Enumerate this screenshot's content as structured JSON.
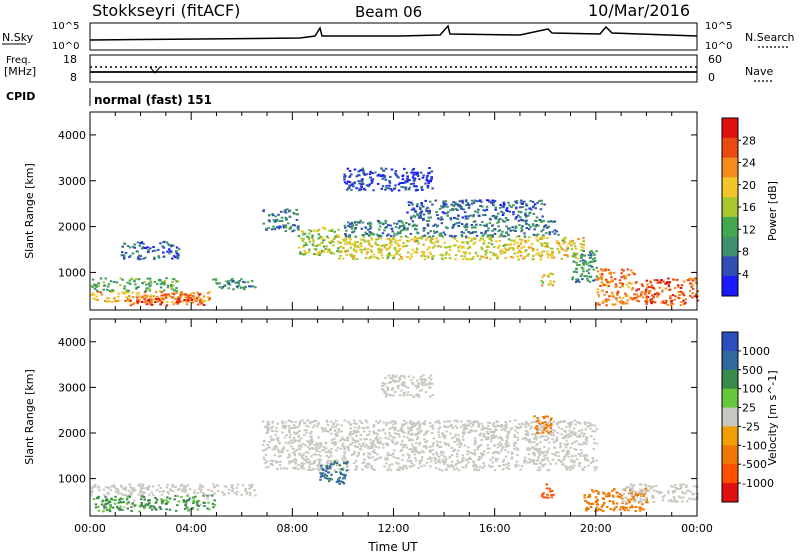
{
  "header": {
    "station": "Stokkseyri (fitACF)",
    "beam": "Beam 06",
    "date": "10/Mar/2016"
  },
  "strips": {
    "nsky_label": "N.Sky",
    "nsky_ticks": [
      "10^5",
      "10^0"
    ],
    "nsearch_label": "N.Search",
    "nsearch_ticks": [
      "10^5",
      "10^0"
    ],
    "freq_label": "Freq.",
    "freq_unit": "[MHz]",
    "freq_ticks": [
      "18",
      "8"
    ],
    "nave_label": "Nave",
    "nave_ticks": [
      "60",
      "0"
    ],
    "cpid_label": "CPID",
    "cpid_value": "normal (fast) 151"
  },
  "colors": {
    "power": [
      "#1a1aff",
      "#2f4fb4",
      "#3f8f6e",
      "#44a850",
      "#a8c830",
      "#f2c628",
      "#f58c1e",
      "#ea4a12",
      "#e01010"
    ],
    "velocity": [
      "#2a4ec0",
      "#2e6a9a",
      "#3a8a4c",
      "#64c83a",
      "#c8c8c0",
      "#f0a000",
      "#f07800",
      "#ff5000",
      "#e01010"
    ]
  },
  "chart_data": [
    {
      "type": "heatmap",
      "title": "",
      "xlabel": "",
      "ylabel": "Slant Range [km]",
      "x_range_hours": [
        0,
        24
      ],
      "ylim": [
        180,
        4500
      ],
      "y_ticks": [
        "1000",
        "2000",
        "3000",
        "4000"
      ],
      "colorbar": {
        "label": "Power [dB]",
        "ticks": [
          "4",
          "8",
          "12",
          "16",
          "20",
          "24",
          "28"
        ],
        "range": [
          0,
          32
        ]
      },
      "regions": [
        {
          "t": [
            0.0,
            4.8
          ],
          "r": [
            350,
            600
          ],
          "power": 22
        },
        {
          "t": [
            1.5,
            4.5
          ],
          "r": [
            300,
            550
          ],
          "power": 27
        },
        {
          "t": [
            0.0,
            3.5
          ],
          "r": [
            600,
            900
          ],
          "power": 12
        },
        {
          "t": [
            4.8,
            6.5
          ],
          "r": [
            650,
            900
          ],
          "power": 10
        },
        {
          "t": [
            1.2,
            3.5
          ],
          "r": [
            1300,
            1700
          ],
          "power": 6
        },
        {
          "t": [
            6.8,
            8.2
          ],
          "r": [
            1900,
            2400
          ],
          "power": 8
        },
        {
          "t": [
            8.2,
            9.8
          ],
          "r": [
            1400,
            2000
          ],
          "power": 16
        },
        {
          "t": [
            9.8,
            19.5
          ],
          "r": [
            1300,
            1800
          ],
          "power": 18
        },
        {
          "t": [
            10.0,
            18.5
          ],
          "r": [
            1800,
            2150
          ],
          "power": 8
        },
        {
          "t": [
            12.5,
            18.0
          ],
          "r": [
            2150,
            2600
          ],
          "power": 6
        },
        {
          "t": [
            10.0,
            13.5
          ],
          "r": [
            2800,
            3300
          ],
          "power": 4
        },
        {
          "t": [
            17.8,
            18.3
          ],
          "r": [
            700,
            1000
          ],
          "power": 18
        },
        {
          "t": [
            19.0,
            20.0
          ],
          "r": [
            800,
            1500
          ],
          "power": 10
        },
        {
          "t": [
            20.0,
            21.5
          ],
          "r": [
            300,
            1100
          ],
          "power": 24
        },
        {
          "t": [
            21.5,
            24.0
          ],
          "r": [
            300,
            900
          ],
          "power": 26
        }
      ]
    },
    {
      "type": "heatmap",
      "title": "",
      "xlabel": "Time UT",
      "ylabel": "Slant Range [km]",
      "x_range_hours": [
        0,
        24
      ],
      "x_ticks": [
        "00:00",
        "04:00",
        "08:00",
        "12:00",
        "16:00",
        "20:00",
        "00:00"
      ],
      "ylim": [
        180,
        4500
      ],
      "y_ticks": [
        "1000",
        "2000",
        "3000",
        "4000"
      ],
      "colorbar": {
        "label": "Velocity [m s^-1]",
        "ticks": [
          "1000",
          "500",
          "100",
          "25",
          "-25",
          "-100",
          "-500",
          "-1000"
        ]
      },
      "regions": [
        {
          "t": [
            0.0,
            5.0
          ],
          "r": [
            300,
            650
          ],
          "velocity": 150
        },
        {
          "t": [
            0.0,
            6.5
          ],
          "r": [
            650,
            900
          ],
          "velocity": 0
        },
        {
          "t": [
            6.8,
            20.0
          ],
          "r": [
            1200,
            2300
          ],
          "velocity": 0
        },
        {
          "t": [
            9.0,
            10.2
          ],
          "r": [
            900,
            1400
          ],
          "velocity": 600
        },
        {
          "t": [
            11.5,
            13.5
          ],
          "r": [
            2800,
            3300
          ],
          "velocity": 0
        },
        {
          "t": [
            17.5,
            18.2
          ],
          "r": [
            2000,
            2400
          ],
          "velocity": -300
        },
        {
          "t": [
            17.8,
            18.3
          ],
          "r": [
            600,
            900
          ],
          "velocity": -700
        },
        {
          "t": [
            19.5,
            22.0
          ],
          "r": [
            300,
            800
          ],
          "velocity": -300
        },
        {
          "t": [
            21.0,
            24.0
          ],
          "r": [
            500,
            900
          ],
          "velocity": 0
        }
      ]
    }
  ]
}
